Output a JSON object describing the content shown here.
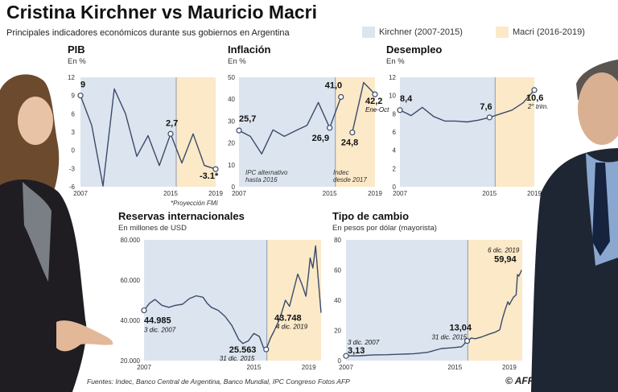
{
  "title": "Cristina Kirchner vs Mauricio Macri",
  "subtitle": "Principales indicadores económicos durante sus gobiernos en Argentina",
  "legend": [
    {
      "label": "Kirchner (2007-2015)",
      "color": "#dce5ef"
    },
    {
      "label": "Macri (2016-2019)",
      "color": "#fbe9c8"
    }
  ],
  "colors": {
    "line": "#3a4a6b",
    "kirchner": "#dce5ef",
    "macri": "#fbe9c8",
    "divider": "#8d9ab0"
  },
  "footer": {
    "sources": "Fuentes: Indec, Banco Central de Argentina, Banco Mundial, IPC Congreso",
    "photos": "Fotos AFP",
    "logo": "AFP"
  },
  "chart_data": [
    {
      "id": "pib",
      "type": "line",
      "title": "PIB",
      "ylabel": "En %",
      "ylim": [
        -6,
        12
      ],
      "yticks": [
        "12",
        "9",
        "6",
        "3",
        "0",
        "-3",
        "-6"
      ],
      "ytick_values": [
        12,
        9,
        6,
        3,
        0,
        -3,
        -6
      ],
      "xlim": [
        2007,
        2019
      ],
      "xticks": [
        "2007",
        "2015",
        "2019"
      ],
      "xtick_values": [
        2007,
        2015,
        2019
      ],
      "x": [
        2007,
        2008,
        2009,
        2010,
        2011,
        2012,
        2013,
        2014,
        2015,
        2016,
        2017,
        2018,
        2019
      ],
      "y": [
        9.0,
        4.1,
        -5.9,
        10.1,
        6.0,
        -1.0,
        2.4,
        -2.5,
        2.7,
        -2.1,
        2.7,
        -2.5,
        -3.1
      ],
      "divider": 2015.5,
      "annotations": [
        {
          "text": "9",
          "x": 2007,
          "y": 9
        },
        {
          "text": "2,7",
          "x": 2015,
          "y": 2.7
        },
        {
          "text": "-3.1*",
          "x": 2019,
          "y": -3.1
        }
      ],
      "note": "*Proyección FMI"
    },
    {
      "id": "inflacion",
      "type": "line",
      "title": "Inflación",
      "ylabel": "En %",
      "ylim": [
        0,
        50
      ],
      "yticks": [
        "50",
        "40",
        "30",
        "20",
        "10",
        "0"
      ],
      "ytick_values": [
        50,
        40,
        30,
        20,
        10,
        0
      ],
      "xlim": [
        2007,
        2019
      ],
      "xticks": [
        "2007",
        "2015",
        "2019"
      ],
      "xtick_values": [
        2007,
        2015,
        2019
      ],
      "series": [
        {
          "name": "IPC alternativo hasta 2016",
          "x": [
            2007,
            2008,
            2009,
            2010,
            2011,
            2012,
            2013,
            2014,
            2015,
            2016
          ],
          "y": [
            25.7,
            23.0,
            15.0,
            26.0,
            23.0,
            25.6,
            28.0,
            38.5,
            26.9,
            41.0
          ]
        },
        {
          "name": "Indec desde 2017",
          "x": [
            2017,
            2018,
            2019
          ],
          "y": [
            24.8,
            47.6,
            42.2
          ]
        }
      ],
      "divider": 2015.5,
      "annotations": [
        {
          "text": "25,7",
          "x": 2007,
          "y": 25.7
        },
        {
          "text": "41,0",
          "x": 2016,
          "y": 41.0
        },
        {
          "text": "26,9",
          "x": 2015,
          "y": 26.9
        },
        {
          "text": "24,8",
          "x": 2017,
          "y": 24.8
        },
        {
          "text": "42,2",
          "x": 2019,
          "y": 42.2
        },
        {
          "text": "Ene-Oct",
          "x": 2019,
          "y": 42.2
        }
      ],
      "series_notes": [
        "IPC alternativo",
        "hasta 2016",
        "Indec",
        "desde 2017"
      ]
    },
    {
      "id": "desempleo",
      "type": "line",
      "title": "Desempleo",
      "ylabel": "En %",
      "ylim": [
        0,
        12
      ],
      "yticks": [
        "12",
        "10",
        "8",
        "6",
        "4",
        "2",
        "0"
      ],
      "ytick_values": [
        12,
        10,
        8,
        6,
        4,
        2,
        0
      ],
      "xlim": [
        2007,
        2019
      ],
      "xticks": [
        "2007",
        "2015",
        "2019"
      ],
      "xtick_values": [
        2007,
        2015,
        2019
      ],
      "x": [
        2007,
        2008,
        2009,
        2010,
        2011,
        2012,
        2013,
        2014,
        2015,
        2016,
        2017,
        2018,
        2019
      ],
      "y": [
        8.4,
        7.8,
        8.7,
        7.7,
        7.2,
        7.2,
        7.1,
        7.3,
        7.6,
        8.0,
        8.4,
        9.2,
        10.6
      ],
      "divider": 2015.5,
      "annotations": [
        {
          "text": "8,4",
          "x": 2007,
          "y": 8.4
        },
        {
          "text": "7,6",
          "x": 2015,
          "y": 7.6
        },
        {
          "text": "10,6",
          "x": 2019,
          "y": 10.6
        },
        {
          "text": "2° trim.",
          "x": 2019,
          "y": 10.6
        }
      ]
    },
    {
      "id": "reservas",
      "type": "line",
      "title": "Reservas internacionales",
      "ylabel": "En millones de USD",
      "ylim": [
        20000,
        80000
      ],
      "yticks": [
        "80.000",
        "60.000",
        "40.000",
        "20.000"
      ],
      "ytick_values": [
        80000,
        60000,
        40000,
        20000
      ],
      "xlim": [
        2007,
        2019.9
      ],
      "xticks": [
        "2007",
        "2015",
        "2019"
      ],
      "xtick_values": [
        2007,
        2015,
        2019
      ],
      "x": [
        2007.0,
        2007.4,
        2007.8,
        2008.3,
        2008.8,
        2009.3,
        2009.8,
        2010.3,
        2010.8,
        2011.3,
        2011.6,
        2011.9,
        2012.4,
        2012.9,
        2013.4,
        2013.9,
        2014.2,
        2014.6,
        2015.0,
        2015.4,
        2015.7,
        2015.9,
        2016.2,
        2016.5,
        2016.9,
        2017.3,
        2017.6,
        2017.9,
        2018.2,
        2018.5,
        2018.8,
        2019.0,
        2019.1,
        2019.3,
        2019.5,
        2019.7,
        2019.9
      ],
      "y": [
        44985,
        48500,
        50400,
        47500,
        46500,
        47500,
        48000,
        50800,
        52200,
        51500,
        48500,
        46500,
        45000,
        42000,
        37500,
        30500,
        28500,
        29800,
        33500,
        32000,
        26500,
        25563,
        31000,
        35000,
        41000,
        50000,
        47000,
        55000,
        63000,
        58000,
        52000,
        64000,
        71000,
        66000,
        77000,
        60000,
        43748
      ],
      "divider": 2015.95,
      "annotations": [
        {
          "text": "44.985",
          "x": 2007,
          "y": 44985
        },
        {
          "text": "3 dic. 2007",
          "x": 2007,
          "y": 44985
        },
        {
          "text": "25.563",
          "x": 2015.9,
          "y": 25563
        },
        {
          "text": "31 dic. 2015",
          "x": 2015.9,
          "y": 25563
        },
        {
          "text": "43.748",
          "x": 2019.9,
          "y": 43748
        },
        {
          "text": "4 dic. 2019",
          "x": 2019.9,
          "y": 43748
        }
      ]
    },
    {
      "id": "cambio",
      "type": "line",
      "title": "Tipo de cambio",
      "ylabel": "En pesos por dólar (mayorista)",
      "ylim": [
        0,
        80
      ],
      "yticks": [
        "80",
        "60",
        "40",
        "20",
        "0"
      ],
      "ytick_values": [
        80,
        60,
        40,
        20,
        0
      ],
      "xlim": [
        2007,
        2019.95
      ],
      "xticks": [
        "2007",
        "2015",
        "2019"
      ],
      "xtick_values": [
        2007,
        2015,
        2019
      ],
      "x": [
        2007.0,
        2008.0,
        2009.0,
        2010.0,
        2011.0,
        2012.0,
        2013.0,
        2014.0,
        2014.5,
        2015.0,
        2015.5,
        2015.9,
        2016.0,
        2016.2,
        2016.5,
        2017.0,
        2017.5,
        2018.0,
        2018.3,
        2018.5,
        2018.7,
        2018.9,
        2019.0,
        2019.3,
        2019.5,
        2019.6,
        2019.7,
        2019.9
      ],
      "y": [
        3.13,
        3.2,
        3.8,
        3.9,
        4.2,
        4.6,
        5.5,
        8.0,
        8.3,
        8.7,
        9.2,
        13.04,
        13.5,
        15.0,
        14.5,
        15.8,
        17.5,
        19.0,
        20.5,
        28.0,
        34.0,
        39.0,
        37.0,
        42.0,
        43.5,
        57.0,
        56.0,
        59.94
      ],
      "divider": 2015.95,
      "annotations": [
        {
          "text": "3,13",
          "x": 2007,
          "y": 3.13
        },
        {
          "text": "3 dic. 2007",
          "x": 2007,
          "y": 3.13
        },
        {
          "text": "13,04",
          "x": 2015.9,
          "y": 13.04
        },
        {
          "text": "31 dic. 2015",
          "x": 2015.9,
          "y": 13.04
        },
        {
          "text": "59,94",
          "x": 2019.9,
          "y": 59.94
        },
        {
          "text": "6 dic. 2019",
          "x": 2019.9,
          "y": 59.94
        }
      ]
    }
  ]
}
